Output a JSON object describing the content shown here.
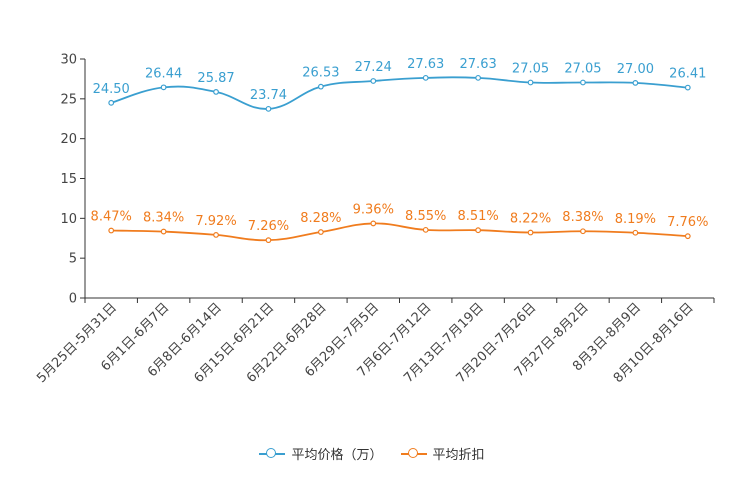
{
  "chart_data": {
    "type": "line",
    "title": "",
    "xlabel": "",
    "ylabel": "",
    "ylim": [
      0,
      30
    ],
    "yticks": [
      0,
      5,
      10,
      15,
      20,
      25,
      30
    ],
    "categories": [
      "5月25日-5月31日",
      "6月1日-6月7日",
      "6月8日-6月14日",
      "6月15日-6月21日",
      "6月22日-6月28日",
      "6月29日-7月5日",
      "7月6日-7月12日",
      "7月13日-7月19日",
      "7月20日-7月26日",
      "7月27日-8月2日",
      "8月3日-8月9日",
      "8月10日-8月16日"
    ],
    "series": [
      {
        "name": "平均价格（万）",
        "color": "#3a9fd0",
        "values": [
          24.5,
          26.44,
          25.87,
          23.74,
          26.53,
          27.24,
          27.63,
          27.63,
          27.05,
          27.05,
          27.0,
          26.41
        ],
        "labels": [
          "24.50",
          "26.44",
          "25.87",
          "23.74",
          "26.53",
          "27.24",
          "27.63",
          "27.63",
          "27.05",
          "27.05",
          "27.00",
          "26.41"
        ]
      },
      {
        "name": "平均折扣",
        "color": "#f07c1e",
        "values": [
          8.47,
          8.34,
          7.92,
          7.26,
          8.28,
          9.36,
          8.55,
          8.51,
          8.22,
          8.38,
          8.19,
          7.76
        ],
        "labels": [
          "8.47%",
          "8.34%",
          "7.92%",
          "7.26%",
          "8.28%",
          "9.36%",
          "8.55%",
          "8.51%",
          "8.22%",
          "8.38%",
          "8.19%",
          "7.76%"
        ]
      }
    ],
    "legend_position": "bottom-center",
    "grid": false
  }
}
